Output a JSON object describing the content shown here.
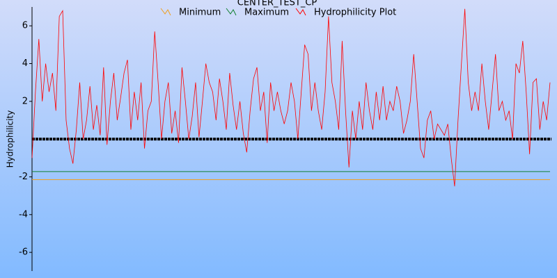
{
  "chart_data": {
    "type": "line",
    "title": "CENTER_TEST_CP",
    "y_label": "Hydrophilicity",
    "ylim": [
      -7.1,
      7
    ],
    "yticks": [
      -6,
      -4,
      -2,
      2,
      4,
      6
    ],
    "reference_line": 0,
    "reference_color": "#000000",
    "series": [
      {
        "name": "Minimum",
        "color": "#f0a020",
        "value": -2.15
      },
      {
        "name": "Maximum",
        "color": "#108030",
        "value": -1.72
      },
      {
        "name": "Hydrophilicity Plot",
        "color": "#ff0000",
        "values": [
          -1,
          2.5,
          5.3,
          2,
          4,
          2.5,
          3.5,
          1.5,
          6.5,
          6.8,
          1,
          -0.5,
          -1.3,
          0.5,
          3,
          0,
          1,
          2.8,
          0.5,
          1.8,
          0.2,
          3.8,
          -0.3,
          2,
          3.5,
          1,
          2.2,
          3.5,
          4.2,
          0.5,
          2.5,
          1,
          3,
          -0.5,
          1.5,
          2,
          5.7,
          3,
          0,
          2,
          3,
          0.3,
          1.5,
          -0.2,
          3.8,
          2,
          0,
          1.2,
          3,
          0.1,
          2,
          4,
          3,
          2.5,
          1,
          3.2,
          2,
          0.5,
          3.5,
          1.8,
          0.5,
          2,
          0.3,
          -0.7,
          1.5,
          3.2,
          3.8,
          1.5,
          2.5,
          -0.2,
          3,
          1.5,
          2.5,
          1.5,
          0.8,
          1.5,
          3,
          2,
          0,
          2.5,
          5,
          4.5,
          1.5,
          3,
          1.5,
          0.5,
          2.5,
          6.5,
          3,
          2,
          0.5,
          5.2,
          1.5,
          -1.5,
          1.5,
          0,
          2,
          0.5,
          3,
          1.5,
          0.5,
          2.5,
          1,
          2.8,
          1,
          2,
          1.5,
          2.8,
          2,
          0.3,
          1,
          2,
          4.5,
          2,
          -0.5,
          -1,
          1,
          1.5,
          0,
          0.8,
          0.5,
          0.2,
          0.8,
          -1,
          -2.5,
          1,
          4,
          6.9,
          3,
          1.5,
          2.5,
          1.5,
          4,
          2,
          0.5,
          2.5,
          4.5,
          1.5,
          2,
          1,
          1.5,
          0,
          4,
          3.5,
          5.2,
          2.5,
          -0.8,
          3,
          3.2,
          0.5,
          2,
          1,
          3
        ]
      }
    ]
  }
}
